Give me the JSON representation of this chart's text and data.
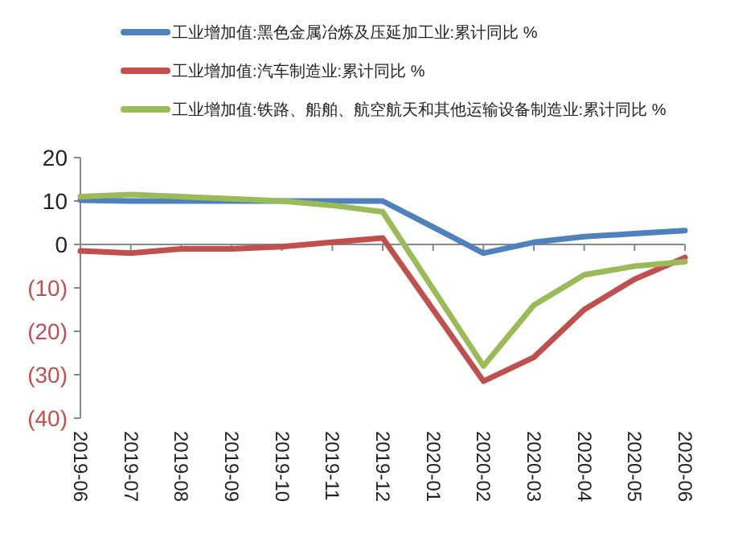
{
  "chart_data": {
    "type": "line",
    "categories": [
      "2019-06",
      "2019-07",
      "2019-08",
      "2019-09",
      "2019-10",
      "2019-11",
      "2019-12",
      "2020-01",
      "2020-02",
      "2020-03",
      "2020-04",
      "2020-05",
      "2020-06"
    ],
    "series": [
      {
        "name": "工业增加值:黑色金属冶炼及压延加工业:累计同比 %",
        "color": "#4f81bd",
        "values": [
          10.2,
          10,
          10,
          10,
          10,
          10,
          10,
          null,
          -2,
          0.5,
          1.8,
          2.5,
          3.2
        ]
      },
      {
        "name": "工业增加值:汽车制造业:累计同比 %",
        "color": "#c0504d",
        "values": [
          -1.5,
          -2,
          -1,
          -1,
          -0.5,
          0.5,
          1.5,
          null,
          -31.5,
          -26,
          -15,
          -8,
          -3
        ]
      },
      {
        "name": "工业增加值:铁路、船舶、航空航天和其他运输设备制造业:累计同比 %",
        "color": "#9bbb59",
        "values": [
          11,
          11.5,
          11,
          10.5,
          10,
          9,
          7.5,
          null,
          -28,
          -14,
          -7,
          -5,
          -4
        ]
      }
    ],
    "ylim": [
      -40,
      20
    ],
    "yticks": [
      20,
      10,
      0,
      {
        "value": -10,
        "label": "(10)"
      },
      {
        "value": -20,
        "label": "(20)"
      },
      {
        "value": -30,
        "label": "(30)"
      },
      {
        "value": -40,
        "label": "(40)"
      }
    ],
    "legend": "top",
    "marker": "none",
    "line_style": "solid"
  }
}
